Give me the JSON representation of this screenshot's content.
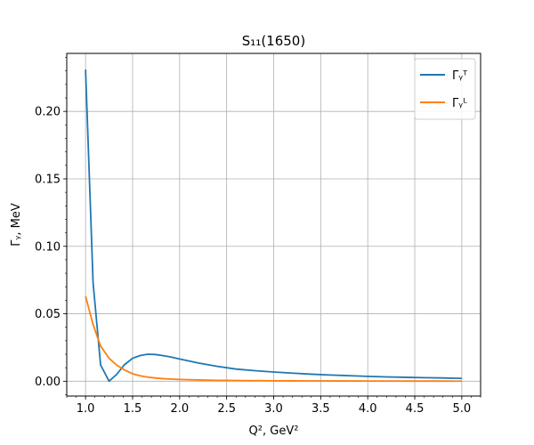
{
  "chart_data": {
    "type": "line",
    "title": "S₁₁(1650)",
    "xlabel": "Q², GeV²",
    "ylabel": "Γᵧ, MeV",
    "xlim": [
      0.8,
      5.2
    ],
    "ylim": [
      -0.011,
      0.243
    ],
    "x_ticks": [
      1.0,
      1.5,
      2.0,
      2.5,
      3.0,
      3.5,
      4.0,
      4.5,
      5.0
    ],
    "x_tick_labels": [
      "1.0",
      "1.5",
      "2.0",
      "2.5",
      "3.0",
      "3.5",
      "4.0",
      "4.5",
      "5.0"
    ],
    "y_ticks": [
      0.0,
      0.05,
      0.1,
      0.15,
      0.2
    ],
    "y_tick_labels": [
      "0.00",
      "0.05",
      "0.10",
      "0.15",
      "0.20"
    ],
    "grid": true,
    "legend_position": "top-right",
    "series": [
      {
        "name": "Γᵧᵀ",
        "color": "#1f77b4",
        "x": [
          1.0,
          1.08,
          1.16,
          1.25,
          1.33,
          1.41,
          1.5,
          1.58,
          1.66,
          1.74,
          1.82,
          1.9,
          2.0,
          2.2,
          2.4,
          2.6,
          2.8,
          3.0,
          3.2,
          3.4,
          3.6,
          3.8,
          4.0,
          4.2,
          4.4,
          4.6,
          4.8,
          5.0
        ],
        "y": [
          0.231,
          0.073,
          0.012,
          0.0,
          0.005,
          0.012,
          0.017,
          0.019,
          0.02,
          0.0198,
          0.019,
          0.018,
          0.0165,
          0.0135,
          0.011,
          0.009,
          0.0078,
          0.0068,
          0.006,
          0.0052,
          0.0046,
          0.0041,
          0.0036,
          0.0032,
          0.0029,
          0.0026,
          0.0024,
          0.0021
        ]
      },
      {
        "name": "Γᵧᴸ",
        "color": "#ff7f0e",
        "x": [
          1.0,
          1.08,
          1.16,
          1.25,
          1.33,
          1.41,
          1.5,
          1.58,
          1.66,
          1.74,
          1.82,
          1.9,
          2.0,
          2.2,
          2.4,
          2.6,
          2.8,
          3.0,
          3.2,
          3.4,
          3.6,
          3.8,
          4.0,
          4.2,
          4.4,
          4.6,
          4.8,
          5.0
        ],
        "y": [
          0.063,
          0.042,
          0.026,
          0.017,
          0.012,
          0.0085,
          0.0055,
          0.004,
          0.003,
          0.0024,
          0.0019,
          0.0016,
          0.0013,
          0.0009,
          0.00065,
          0.0005,
          0.0004,
          0.00032,
          0.00027,
          0.00022,
          0.00019,
          0.00016,
          0.00014,
          0.00012,
          0.0001,
          9e-05,
          8e-05,
          7e-05
        ]
      }
    ]
  }
}
